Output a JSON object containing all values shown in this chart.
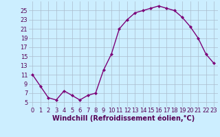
{
  "x": [
    0,
    1,
    2,
    3,
    4,
    5,
    6,
    7,
    8,
    9,
    10,
    11,
    12,
    13,
    14,
    15,
    16,
    17,
    18,
    19,
    20,
    21,
    22,
    23
  ],
  "y": [
    11,
    8.5,
    6,
    5.5,
    7.5,
    6.5,
    5.5,
    6.5,
    7,
    12,
    15.5,
    21,
    23,
    24.5,
    25,
    25.5,
    26,
    25.5,
    25,
    23.5,
    21.5,
    19,
    15.5,
    13.5
  ],
  "line_color": "#7B0077",
  "marker": "D",
  "marker_size": 2.2,
  "bg_color": "#cceeff",
  "grid_color": "#aabbcc",
  "xlabel": "Windchill (Refroidissement éolien,°C)",
  "xlabel_fontsize": 7,
  "ylabel_ticks": [
    5,
    7,
    9,
    11,
    13,
    15,
    17,
    19,
    21,
    23,
    25
  ],
  "xlim": [
    -0.5,
    23.5
  ],
  "ylim": [
    4.0,
    27.0
  ],
  "xticks": [
    0,
    1,
    2,
    3,
    4,
    5,
    6,
    7,
    8,
    9,
    10,
    11,
    12,
    13,
    14,
    15,
    16,
    17,
    18,
    19,
    20,
    21,
    22,
    23
  ],
  "tick_fontsize": 6,
  "line_width": 1.0
}
